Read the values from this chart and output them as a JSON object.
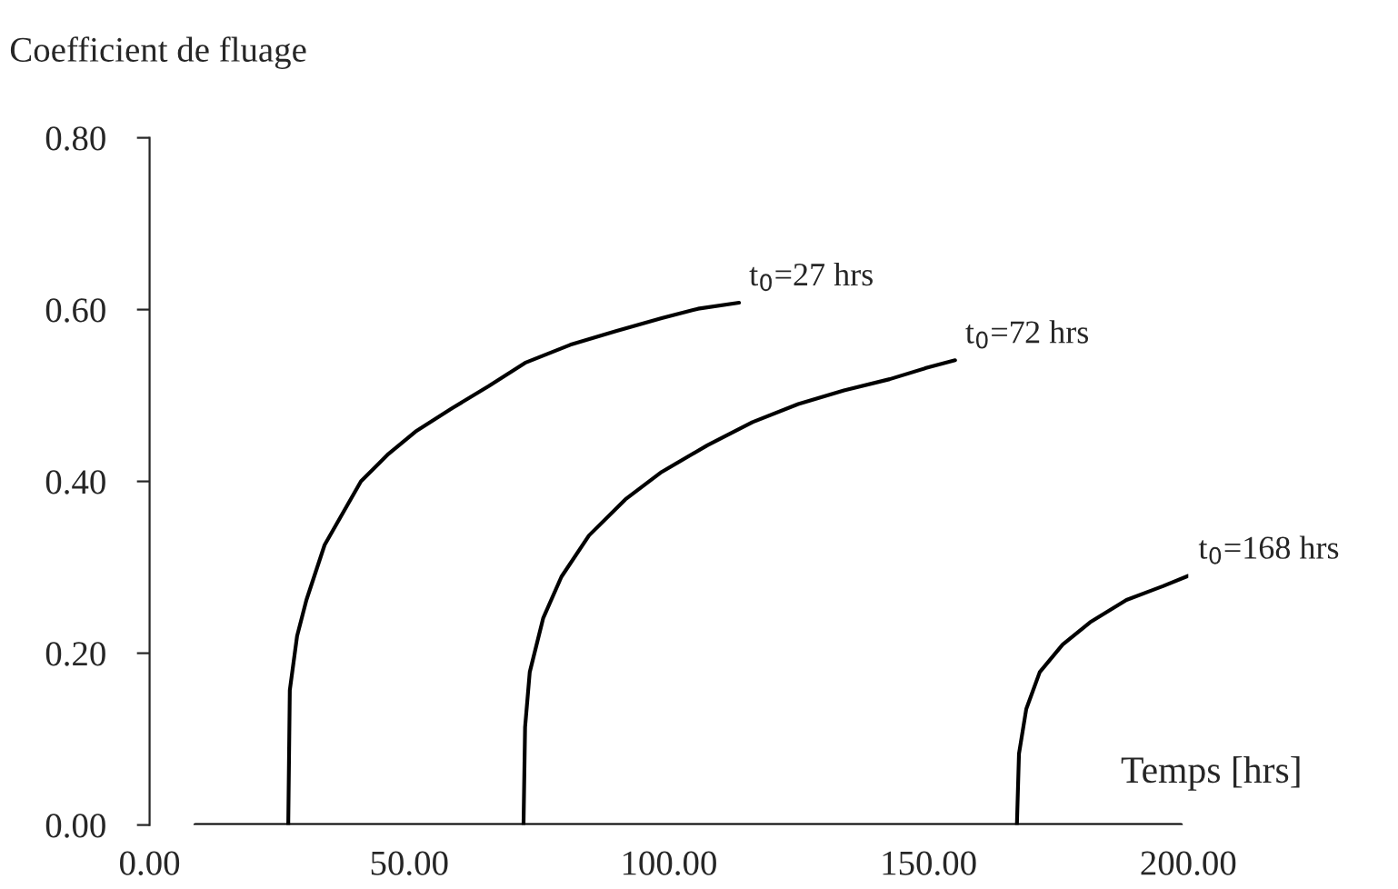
{
  "chart_data": {
    "type": "line",
    "xlabel": "Temps [hrs]",
    "ylabel": "Coefficient de fluage",
    "series": [
      {
        "color": "#000000",
        "x": [
          8.8,
          26.7,
          27.0,
          28.4,
          30.2,
          33.7,
          37.2,
          40.7,
          46,
          51.2,
          58.2,
          65.3,
          72.3,
          81,
          89.8,
          98.6,
          105.6,
          113.5
        ],
        "values": [
          0,
          0,
          0.157,
          0.22,
          0.262,
          0.326,
          0.363,
          0.4,
          0.432,
          0.458,
          0.485,
          0.511,
          0.538,
          0.559,
          0.575,
          0.59,
          0.601,
          0.608
        ]
      },
      {
        "color": "#000000",
        "x": [
          26.7,
          72,
          72.3,
          73.2,
          75.8,
          79.3,
          84.6,
          91.6,
          98.6,
          107.4,
          116.1,
          124.9,
          133.7,
          142.5,
          149.5,
          155.1
        ],
        "values": [
          0,
          0,
          0.114,
          0.178,
          0.241,
          0.289,
          0.337,
          0.379,
          0.411,
          0.442,
          0.469,
          0.49,
          0.506,
          0.519,
          0.532,
          0.541
        ]
      },
      {
        "color": "#000000",
        "x": [
          72,
          167,
          167.4,
          168.8,
          171.4,
          175.8,
          181.1,
          188.1,
          195.1,
          200
        ],
        "values": [
          0,
          0,
          0.083,
          0.135,
          0.178,
          0.21,
          0.236,
          0.262,
          0.278,
          0.29
        ]
      },
      {
        "color": "#000000",
        "x": [
          167,
          198.6
        ],
        "values": [
          0,
          0
        ]
      }
    ],
    "annotations": [
      {
        "text": "t$_{0}$=27 hrs",
        "x": 113.5,
        "y": 0.608
      },
      {
        "text": "t$_{0}$=72 hrs",
        "x": 155.1,
        "y": 0.541
      },
      {
        "text": "t$_{0}$=168 hrs",
        "x": 200,
        "y": 0.29
      }
    ],
    "xlim": [
      0,
      200
    ],
    "ylim": [
      0,
      0.8
    ],
    "xticks": [
      {
        "value": 0,
        "label": "0.00"
      },
      {
        "value": 50,
        "label": "50.00"
      },
      {
        "value": 100,
        "label": "100.00"
      },
      {
        "value": 150,
        "label": "150.00"
      },
      {
        "value": 200,
        "label": "200.00"
      }
    ],
    "yticks": [
      {
        "value": 0,
        "label": "0.00"
      },
      {
        "value": 0.2,
        "label": "0.20"
      },
      {
        "value": 0.4,
        "label": "0.40"
      },
      {
        "value": 0.6,
        "label": "0.60"
      },
      {
        "value": 0.8,
        "label": "0.80"
      }
    ],
    "grid": false,
    "marker": "none",
    "line_style": "solid"
  }
}
